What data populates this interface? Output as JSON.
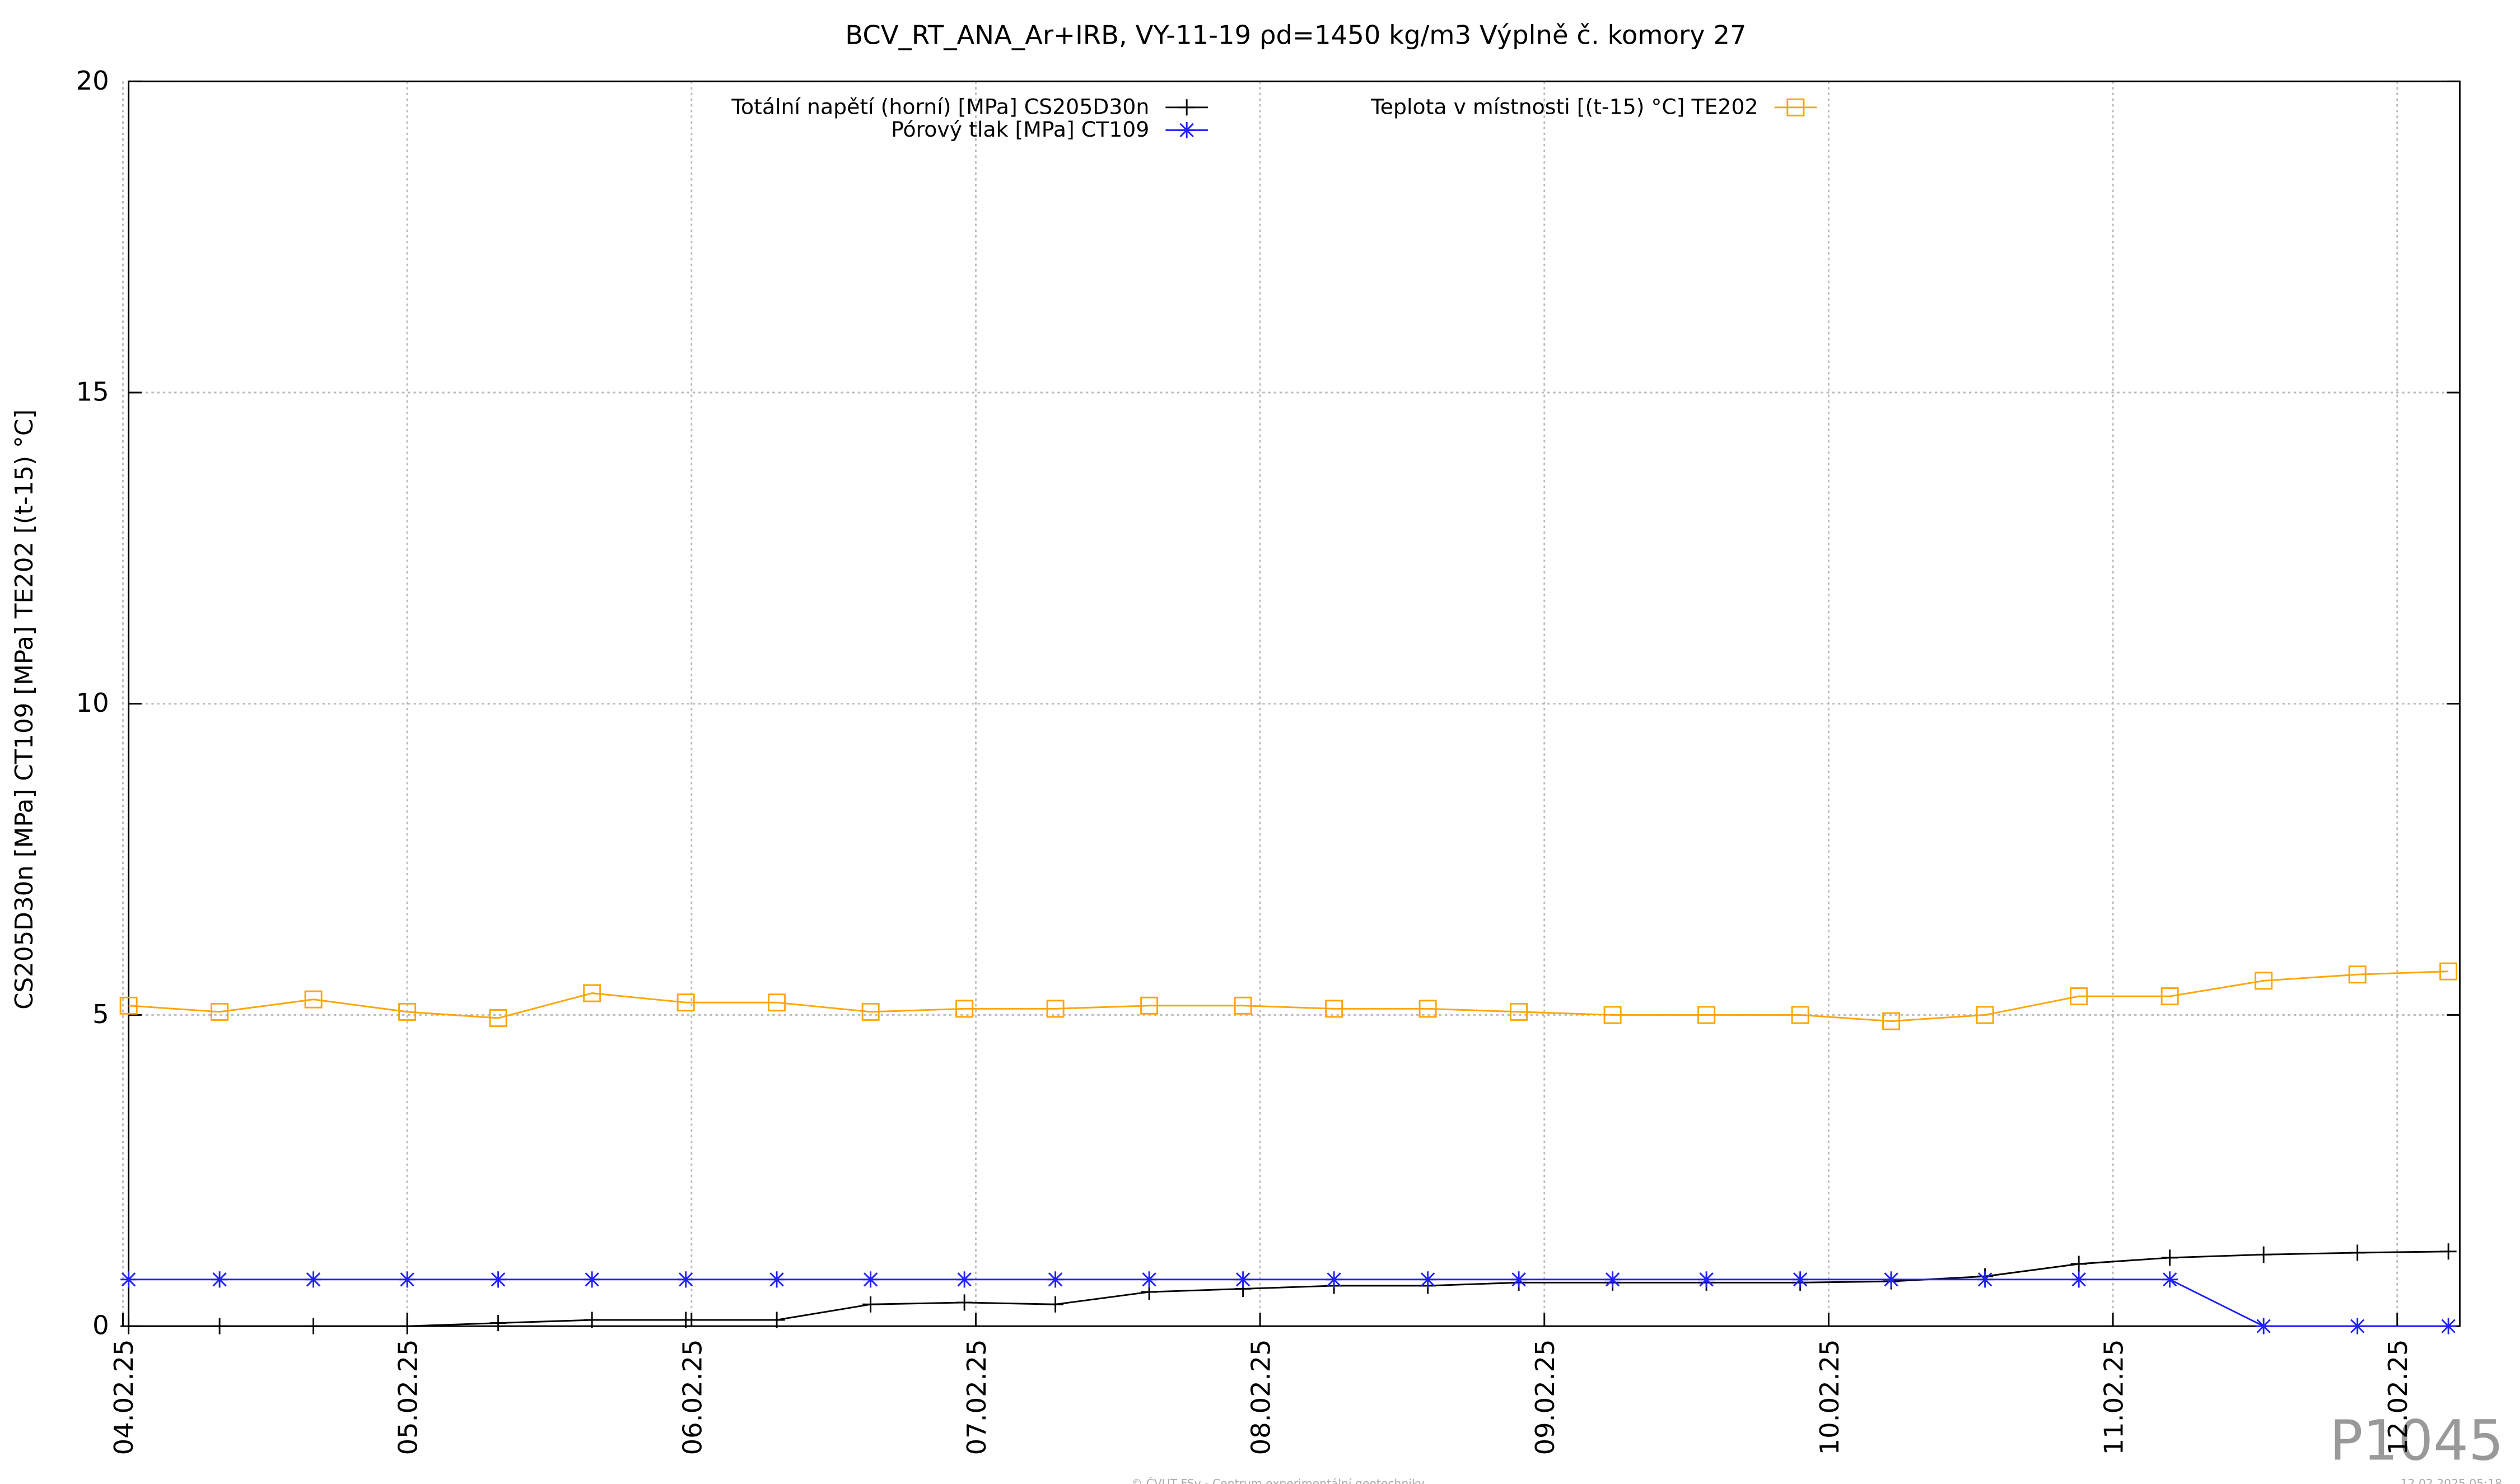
{
  "chart_data": {
    "type": "line",
    "title": "BCV_RT_ANA_Ar+IRB, VY-11-19 ρd=1450 kg/m3 Výplně č. komory 27",
    "y_label": "CS205D30n [MPa] CT109 [MPa] TE202 [(t-15) °C]",
    "xlim": [
      0.02,
      8.22
    ],
    "xticks": [
      {
        "value": 0,
        "label": "04.02.25"
      },
      {
        "value": 1,
        "label": "05.02.25"
      },
      {
        "value": 2,
        "label": "06.02.25"
      },
      {
        "value": 3,
        "label": "07.02.25"
      },
      {
        "value": 4,
        "label": "08.02.25"
      },
      {
        "value": 5,
        "label": "09.02.25"
      },
      {
        "value": 6,
        "label": "10.02.25"
      },
      {
        "value": 7,
        "label": "11.02.25"
      },
      {
        "value": 8,
        "label": "12.02.25"
      }
    ],
    "ylim": [
      0,
      20
    ],
    "yticks": [
      0,
      5,
      10,
      15,
      20
    ],
    "grid": true,
    "x": [
      0.02,
      0.34,
      0.67,
      1.0,
      1.32,
      1.65,
      1.98,
      2.3,
      2.63,
      2.96,
      3.28,
      3.61,
      3.94,
      4.26,
      4.59,
      4.91,
      5.24,
      5.57,
      5.9,
      6.22,
      6.55,
      6.88,
      7.2,
      7.53,
      7.86,
      8.18
    ],
    "series": [
      {
        "name": "Totální napětí (horní) [MPa] CS205D30n",
        "color": "#000000",
        "marker": "plus",
        "values": [
          0,
          0,
          0,
          0,
          0.05,
          0.1,
          0.1,
          0.1,
          0.35,
          0.38,
          0.35,
          0.55,
          0.6,
          0.65,
          0.65,
          0.7,
          0.7,
          0.7,
          0.7,
          0.72,
          0.8,
          1.0,
          1.1,
          1.15,
          1.18,
          1.2
        ]
      },
      {
        "name": "Pórový tlak [MPa] CT109",
        "color": "#2020ff",
        "marker": "star",
        "values": [
          0.75,
          0.75,
          0.75,
          0.75,
          0.75,
          0.75,
          0.75,
          0.75,
          0.75,
          0.75,
          0.75,
          0.75,
          0.75,
          0.75,
          0.75,
          0.75,
          0.75,
          0.75,
          0.75,
          0.75,
          0.75,
          0.75,
          0.75,
          0,
          0,
          0
        ]
      },
      {
        "name": "Teplota v místnosti [(t-15) °C] TE202",
        "color": "#ffa500",
        "marker": "square",
        "values": [
          5.15,
          5.05,
          5.25,
          5.05,
          4.95,
          5.35,
          5.2,
          5.2,
          5.05,
          5.1,
          5.1,
          5.15,
          5.15,
          5.1,
          5.1,
          5.05,
          5.0,
          5.0,
          5.0,
          4.9,
          5.0,
          5.3,
          5.3,
          5.55,
          5.65,
          5.7
        ]
      }
    ],
    "watermark": "P1045",
    "footer": "© ČVUT FSv - Centrum experimentální geotechniky",
    "timestamp": "12.02.2025 05:18"
  }
}
